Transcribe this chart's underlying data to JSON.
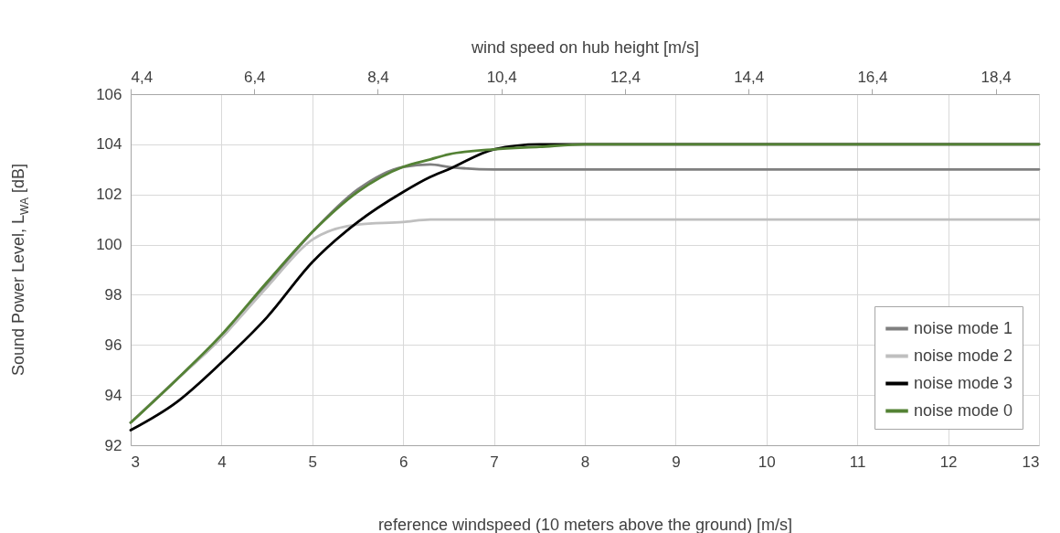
{
  "chart_data": {
    "type": "line",
    "xlabel": "reference windspeed (10 meters above the ground) [m/s]",
    "ylabel": "Sound Power Level, L$_{WA}$ [dB]",
    "x2label": "wind speed on hub height [m/s]",
    "xlim": [
      3,
      13
    ],
    "xticks": [
      3,
      4,
      5,
      6,
      7,
      8,
      9,
      10,
      11,
      12,
      13
    ],
    "ylim": [
      92,
      106
    ],
    "yticks": [
      92,
      94,
      96,
      98,
      100,
      102,
      104,
      106
    ],
    "x2lim": [
      4.4,
      19.1
    ],
    "x2ticks": [
      {
        "value": 4.4,
        "label": "4,4"
      },
      {
        "value": 6.4,
        "label": "6,4"
      },
      {
        "value": 8.4,
        "label": "8,4"
      },
      {
        "value": 10.4,
        "label": "10,4"
      },
      {
        "value": 12.4,
        "label": "12,4"
      },
      {
        "value": 14.4,
        "label": "14,4"
      },
      {
        "value": 16.4,
        "label": "16,4"
      },
      {
        "value": 18.4,
        "label": "18,4"
      }
    ],
    "x": [
      3,
      3.5,
      4,
      4.5,
      5,
      5.5,
      6,
      6.3,
      6.5,
      7,
      7.5,
      8,
      9,
      10,
      11,
      12,
      13
    ],
    "series": [
      {
        "name": "noise mode 1",
        "color": "#7f7f7f",
        "values": [
          92.9,
          94.6,
          96.3,
          98.4,
          100.5,
          102.2,
          103.1,
          103.2,
          103.1,
          103.0,
          103.0,
          103.0,
          103.0,
          103.0,
          103.0,
          103.0,
          103.0
        ]
      },
      {
        "name": "noise mode 2",
        "color": "#bfbfbf",
        "values": [
          92.9,
          94.6,
          96.3,
          98.3,
          100.2,
          100.8,
          100.9,
          101.0,
          101.0,
          101.0,
          101.0,
          101.0,
          101.0,
          101.0,
          101.0,
          101.0,
          101.0
        ]
      },
      {
        "name": "noise mode 3",
        "color": "#000000",
        "values": [
          92.6,
          93.7,
          95.3,
          97.1,
          99.3,
          100.9,
          102.1,
          102.7,
          103.0,
          103.8,
          104.0,
          104.0,
          104.0,
          104.0,
          104.0,
          104.0,
          104.0
        ]
      },
      {
        "name": "noise mode 0",
        "color": "#548235",
        "values": [
          92.9,
          94.6,
          96.4,
          98.5,
          100.5,
          102.1,
          103.1,
          103.4,
          103.6,
          103.8,
          103.9,
          104.0,
          104.0,
          104.0,
          104.0,
          104.0,
          104.0
        ]
      }
    ],
    "grid": true,
    "legend": "bottom right"
  }
}
